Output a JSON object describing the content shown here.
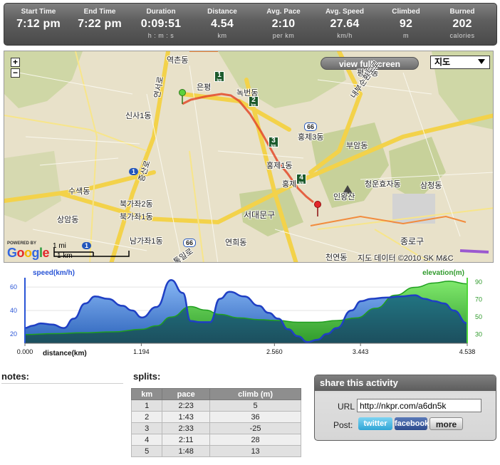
{
  "stats": [
    {
      "label": "Start Time",
      "value": "7:12 pm",
      "unit": ""
    },
    {
      "label": "End Time",
      "value": "7:22 pm",
      "unit": ""
    },
    {
      "label": "Duration",
      "value": "0:09:51",
      "unit": "h : m : s"
    },
    {
      "label": "Distance",
      "value": "4.54",
      "unit": "km"
    },
    {
      "label": "Avg. Pace",
      "value": "2:10",
      "unit": "per km"
    },
    {
      "label": "Avg. Speed",
      "value": "27.64",
      "unit": "km/h"
    },
    {
      "label": "Climbed",
      "value": "92",
      "unit": "m"
    },
    {
      "label": "Burned",
      "value": "202",
      "unit": "calories"
    }
  ],
  "map": {
    "zoom_in": "+",
    "zoom_out": "−",
    "fullscreen_label": "view fullscreen",
    "map_type": "지도",
    "scale_mi": "1 mi",
    "scale_km": "1 km",
    "powered_by": "POWERED BY",
    "google": "Google",
    "copyright": "지도 데이터 ©2010 SK M&C",
    "labels": [
      "역촌동",
      "은평",
      "녹번동",
      "신사1동",
      "홍제3동",
      "홍제1동",
      "홍제",
      "부암동",
      "인왕산",
      "청운효자동",
      "삼청동",
      "수색동",
      "북가좌2동",
      "북가좌1동",
      "상암동",
      "서대문구",
      "남가좌1동",
      "연희동",
      "천연동",
      "종로구",
      "평창동",
      "내부순환도로",
      "통일로",
      "증산로",
      "연서로"
    ],
    "km_markers": [
      "1",
      "2",
      "3",
      "4"
    ],
    "km_unit": "km",
    "road_shields": [
      "1",
      "66",
      "66",
      "1"
    ]
  },
  "chart_data": {
    "type": "area",
    "left_axis_label": "speed(km/h)",
    "right_axis_label": "elevation(m)",
    "xlabel": "distance(km)",
    "x_ticks": [
      "0.000",
      "1.194",
      "2.560",
      "3.443",
      "4.538"
    ],
    "left_ticks": [
      "20",
      "40",
      "60"
    ],
    "right_ticks": [
      "30",
      "50",
      "70",
      "90"
    ],
    "left_range": [
      12,
      68
    ],
    "right_range": [
      20,
      95
    ],
    "x_range": [
      0,
      4.538
    ],
    "series": [
      {
        "name": "speed(km/h)",
        "color": "#2a55d6",
        "x": [
          0,
          0.08,
          0.16,
          0.28,
          0.4,
          0.5,
          0.62,
          0.72,
          0.85,
          1.0,
          1.1,
          1.2,
          1.35,
          1.5,
          1.62,
          1.7,
          1.8,
          1.9,
          2.0,
          2.1,
          2.25,
          2.4,
          2.5,
          2.6,
          2.7,
          2.8,
          2.9,
          3.0,
          3.1,
          3.2,
          3.35,
          3.45,
          3.55,
          3.7,
          3.85,
          4.0,
          4.1,
          4.2,
          4.3,
          4.4,
          4.538
        ],
        "y": [
          25,
          27,
          29,
          28,
          25,
          33,
          46,
          52,
          50,
          44,
          40,
          34,
          43,
          66,
          55,
          31,
          30,
          30,
          50,
          56,
          52,
          44,
          38,
          33,
          24,
          18,
          13,
          15,
          20,
          25,
          40,
          48,
          50,
          51,
          52,
          53,
          50,
          48,
          46,
          40,
          29
        ]
      },
      {
        "name": "elevation(m)",
        "color": "#4fd73a",
        "x": [
          0,
          0.3,
          0.6,
          0.9,
          1.2,
          1.35,
          1.5,
          1.7,
          1.85,
          2.0,
          2.2,
          2.4,
          2.6,
          2.8,
          3.0,
          3.2,
          3.4,
          3.6,
          3.8,
          4.0,
          4.2,
          4.35,
          4.538
        ],
        "y": [
          30,
          31,
          32,
          33,
          36,
          40,
          50,
          62,
          58,
          53,
          49,
          47,
          46,
          44,
          44,
          46,
          49,
          60,
          75,
          84,
          89,
          91,
          88
        ]
      }
    ]
  },
  "notes": {
    "title": "notes:"
  },
  "splits": {
    "title": "splits:",
    "headers": [
      "km",
      "pace",
      "climb (m)"
    ],
    "rows": [
      [
        "1",
        "2:23",
        "5"
      ],
      [
        "2",
        "1:43",
        "36"
      ],
      [
        "3",
        "2:33",
        "-25"
      ],
      [
        "4",
        "2:11",
        "28"
      ],
      [
        "5",
        "1:48",
        "13"
      ]
    ]
  },
  "share": {
    "title": "share this activity",
    "url_label": "URL",
    "url_value": "http://nkpr.com/a6dn5k",
    "post_label": "Post:",
    "twitter": "twitter",
    "facebook": "facebook",
    "more": "more"
  },
  "colors": {
    "speed": "#2a55d6",
    "elevation": "#4fd73a",
    "route": "#e34a2a"
  }
}
